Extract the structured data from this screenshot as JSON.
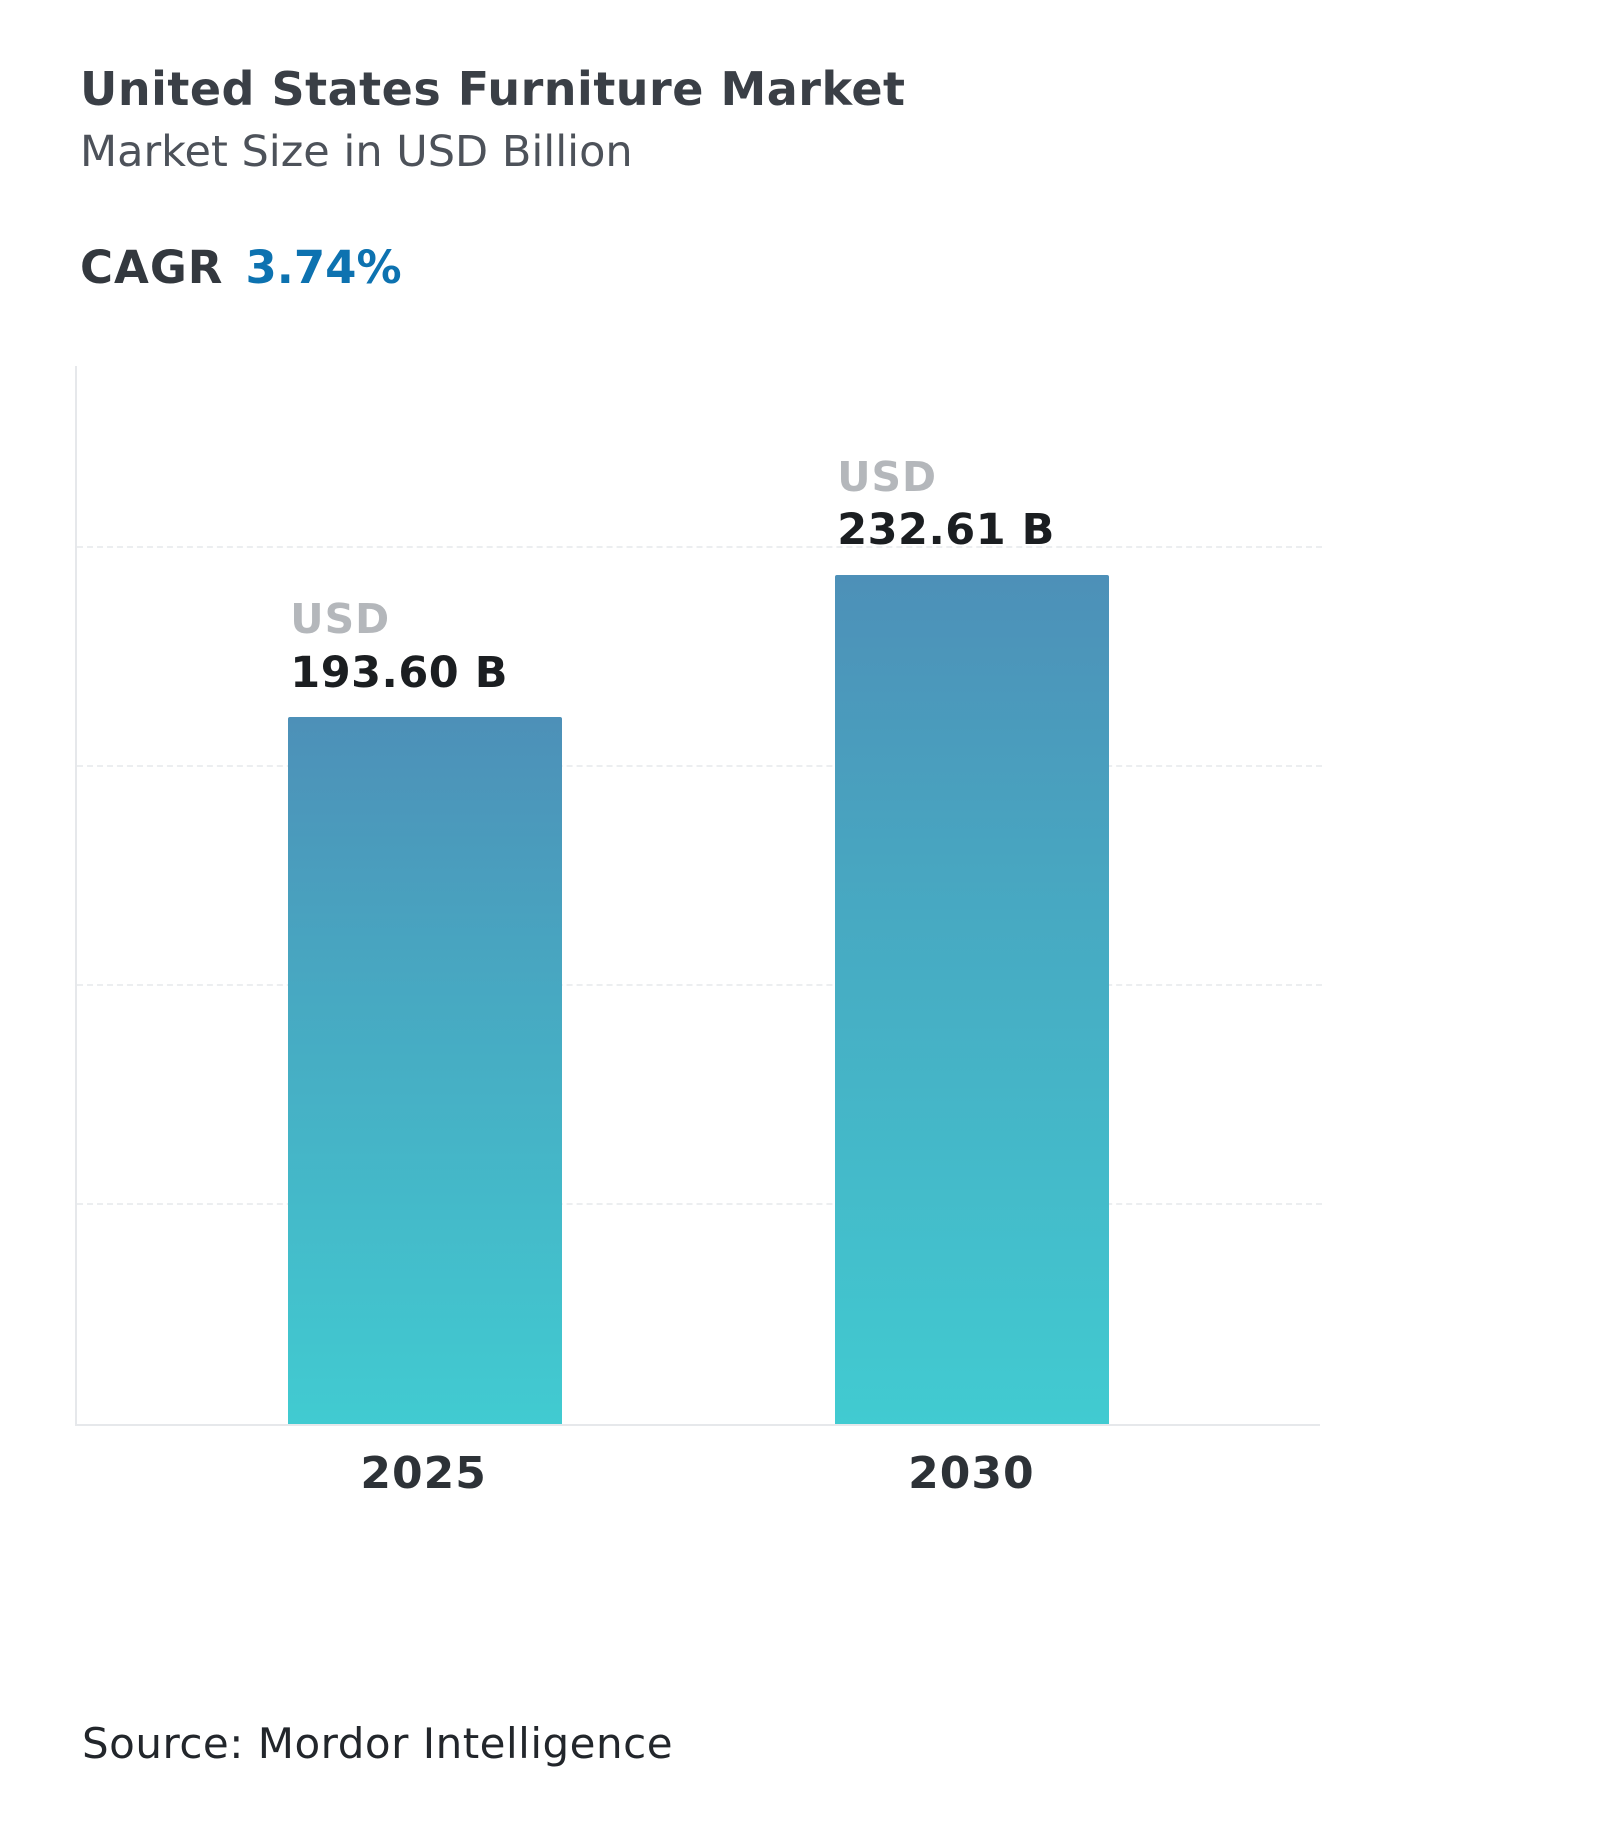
{
  "header": {
    "title": "United States Furniture Market",
    "subtitle": "Market Size in USD Billion",
    "cagr_label": "CAGR",
    "cagr_value": "3.74%"
  },
  "chart_data": {
    "type": "bar",
    "title": "United States Furniture Market",
    "subtitle": "Market Size in USD Billion",
    "categories": [
      "2025",
      "2030"
    ],
    "values": [
      193.6,
      232.61
    ],
    "value_labels": [
      {
        "prefix": "USD",
        "text": "193.60 B"
      },
      {
        "prefix": "USD",
        "text": "232.61 B"
      }
    ],
    "unit": "USD Billion",
    "cagr": "3.74%",
    "xlabel": "",
    "ylabel": "Market Size in USD Billion",
    "ylim": [
      0,
      290
    ],
    "gridlines": [
      60,
      120,
      180,
      240
    ],
    "grid": "dashed-horizontal",
    "legend": "none"
  },
  "colors": {
    "bar_gradient_top": "#4d90b8",
    "bar_gradient_bottom": "#41cbd1",
    "cagr_accent": "#0d72b0",
    "usd_label_gray": "#b4b7bb",
    "title_dark": "#3a3f46",
    "axis_gray": "#e6e8eb"
  },
  "footer": {
    "source": "Source: Mordor Intelligence"
  }
}
